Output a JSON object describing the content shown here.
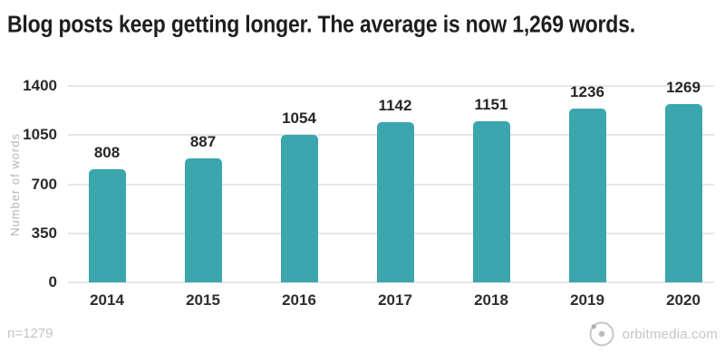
{
  "chart_data": {
    "type": "bar",
    "title": "Blog posts keep getting longer. The average is now 1,269 words.",
    "categories": [
      "2014",
      "2015",
      "2016",
      "2017",
      "2018",
      "2019",
      "2020"
    ],
    "values": [
      808,
      887,
      1054,
      1142,
      1151,
      1236,
      1269
    ],
    "xlabel": "",
    "ylabel": "Number of words",
    "ylim": [
      0,
      1400
    ],
    "yticks": [
      0,
      350,
      700,
      1050,
      1400
    ],
    "grid": true,
    "legend": "none",
    "value_labels": true,
    "bar_color": "#3BA6AD"
  },
  "footer": {
    "sample_note": "n=1279",
    "brand_text": "orbitmedia.com",
    "logo_icon": "orbit-logo"
  },
  "colors": {
    "bar": "#3BA6AD",
    "title_text": "#1e1e1e",
    "tick_text": "#2b2b2b",
    "gridline": "#e7e7e7",
    "muted_text": "#c4c4c4"
  }
}
